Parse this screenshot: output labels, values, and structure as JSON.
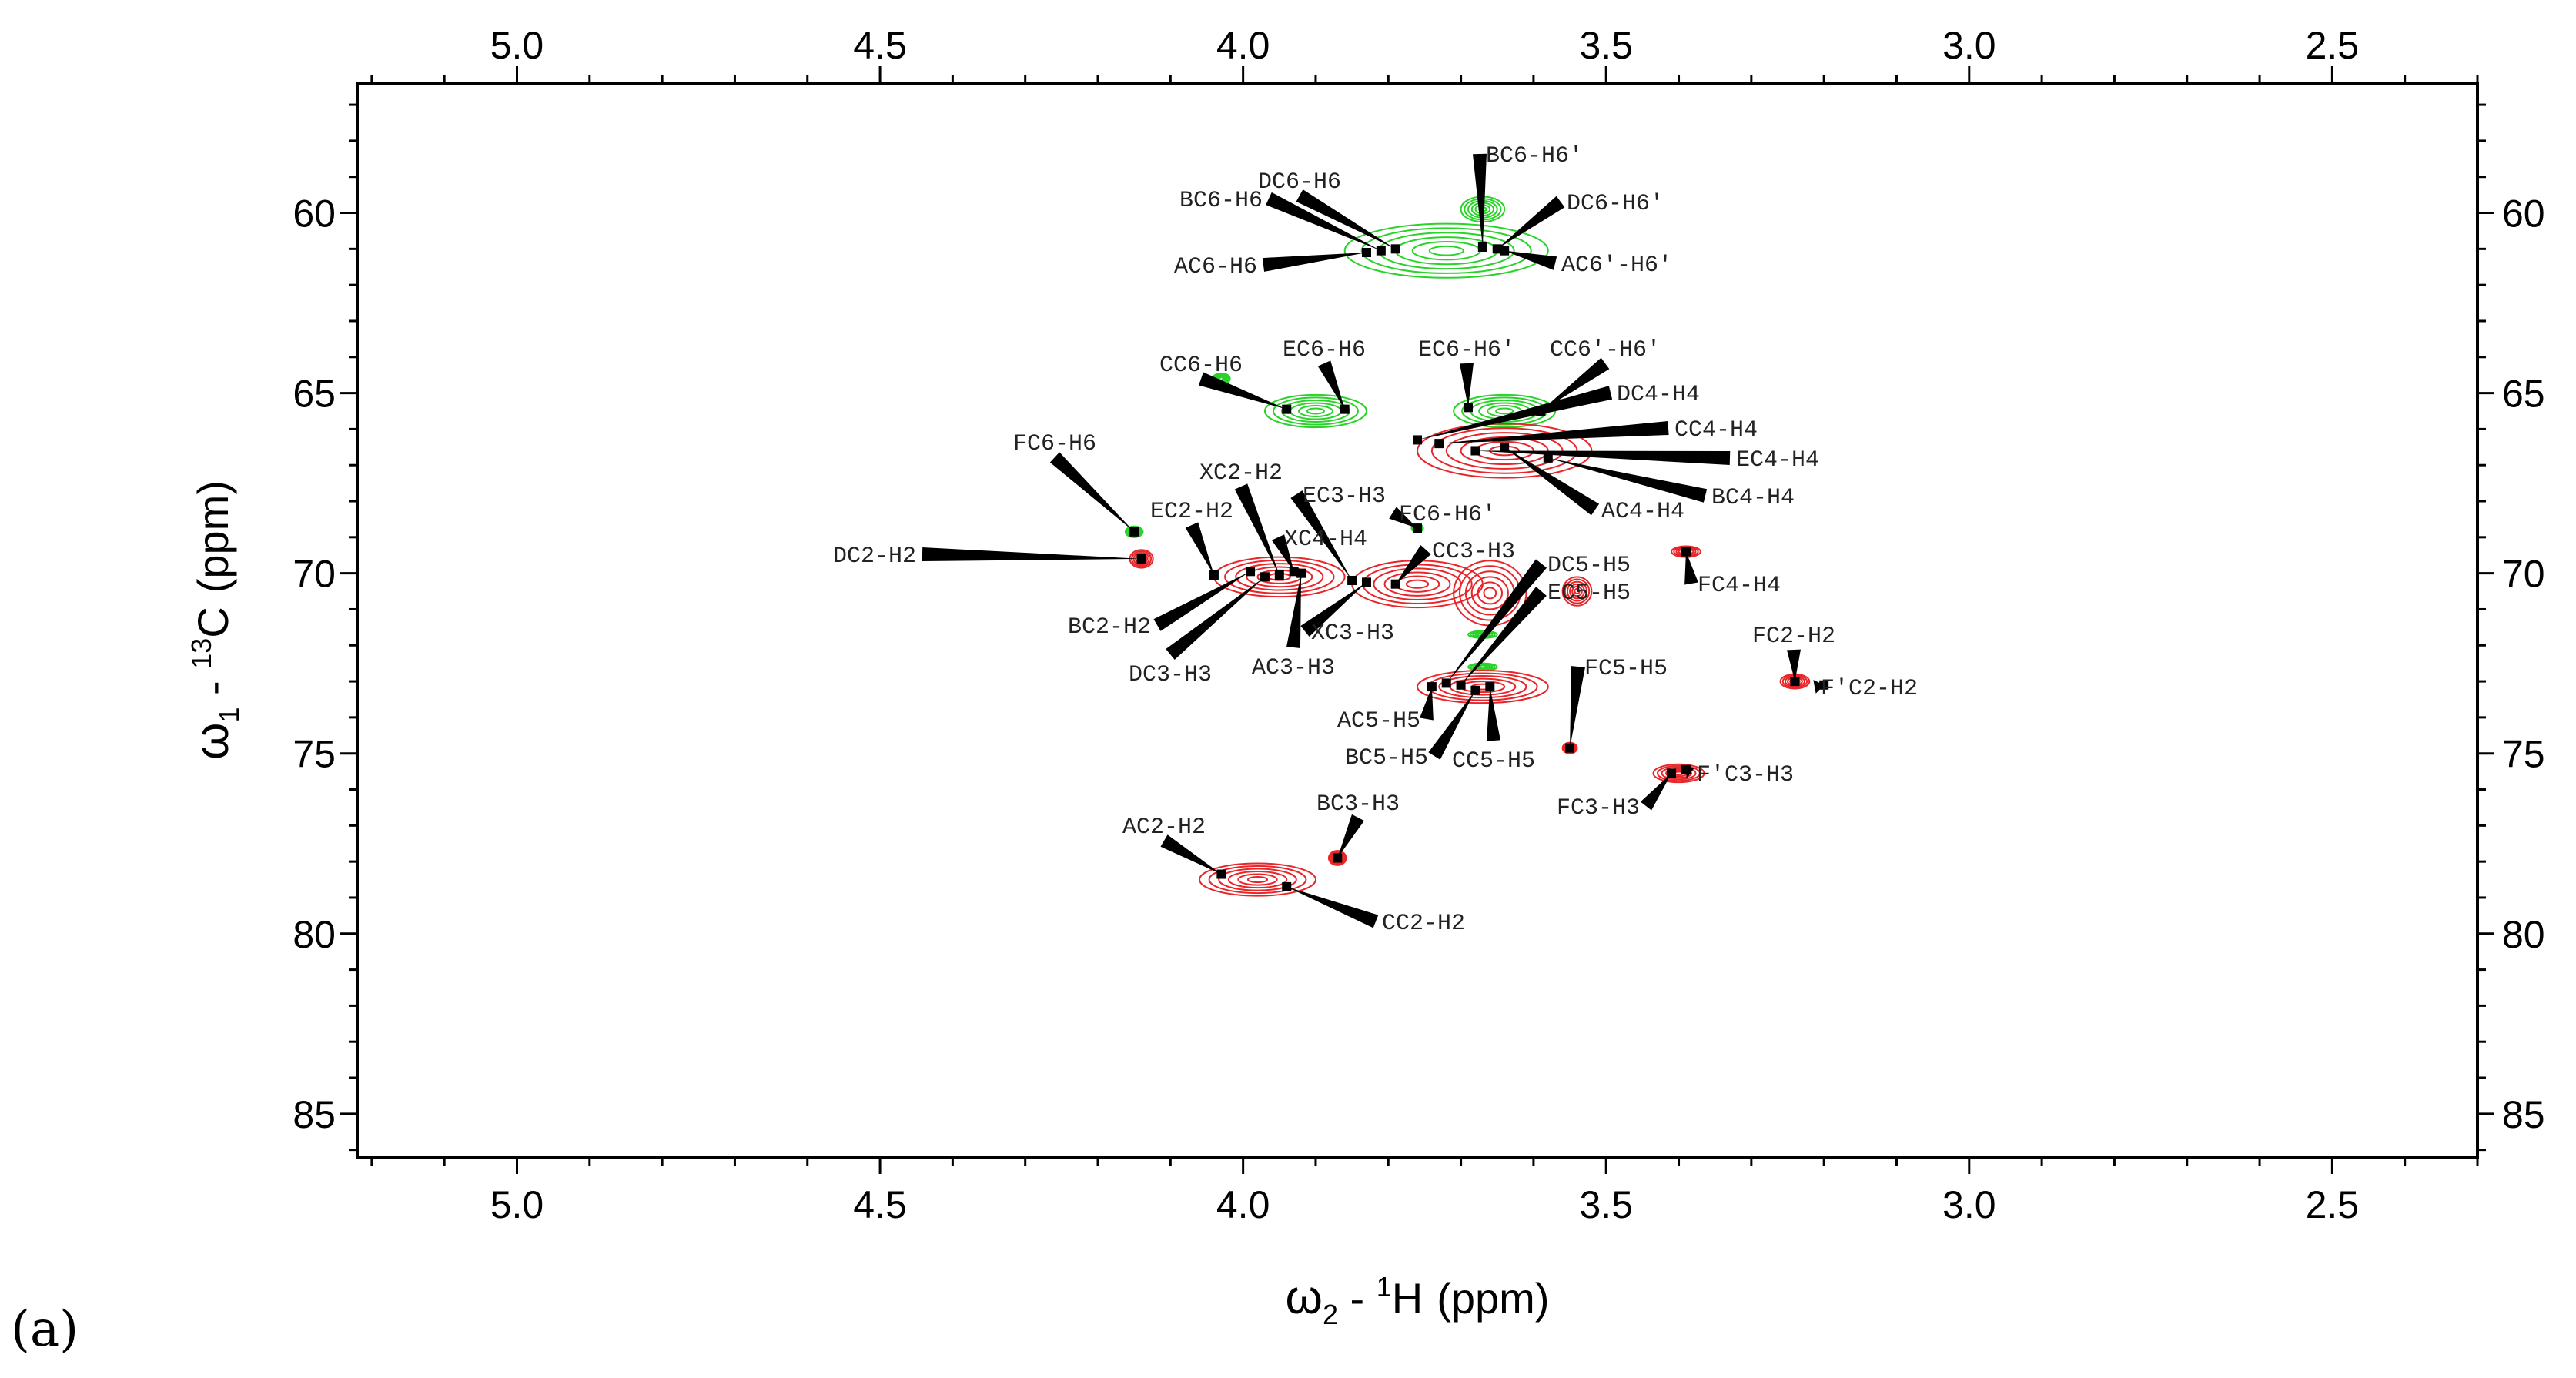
{
  "figure": {
    "panel_label": "(a)"
  },
  "chart_data": {
    "type": "scatter",
    "subtype": "2D NMR HSQC contour spectrum",
    "title": "",
    "xlabel": {
      "greek": "ω",
      "sub": "2",
      "sep": " - ",
      "sup": "1",
      "nucleus": "H",
      "unit": "(ppm)"
    },
    "ylabel": {
      "greek": "ω",
      "sub": "1",
      "sep": " - ",
      "sup": "13",
      "nucleus": "C",
      "unit": "(ppm)"
    },
    "xlim": [
      5.22,
      2.3
    ],
    "ylim": [
      56.4,
      86.2
    ],
    "x_ticks": [
      "5.0",
      "4.5",
      "4.0",
      "3.5",
      "3.0",
      "2.5"
    ],
    "x_tick_values": [
      5.0,
      4.5,
      4.0,
      3.5,
      3.0,
      2.5
    ],
    "y_ticks": [
      "60",
      "65",
      "70",
      "75",
      "80",
      "85"
    ],
    "y_tick_values": [
      60,
      65,
      70,
      75,
      80,
      85
    ],
    "colors": {
      "positive": "#e8262a",
      "negative": "#2ad22a",
      "peak": "#000000",
      "frame": "#000000"
    },
    "peaks": [
      {
        "label": "BC6-H6",
        "x": 3.81,
        "y": 61.05
      },
      {
        "label": "DC6-H6",
        "x": 3.79,
        "y": 61.0
      },
      {
        "label": "AC6-H6",
        "x": 3.83,
        "y": 61.1
      },
      {
        "label": "BC6-H6′",
        "x": 3.67,
        "y": 60.95
      },
      {
        "label": "DC6-H6′",
        "x": 3.65,
        "y": 61.0
      },
      {
        "label": "AC6′-H6′",
        "x": 3.64,
        "y": 61.05
      },
      {
        "label": "CC6-H6",
        "x": 3.94,
        "y": 65.45
      },
      {
        "label": "EC6-H6",
        "x": 3.86,
        "y": 65.45
      },
      {
        "label": "EC6-H6′",
        "x": 3.69,
        "y": 65.4
      },
      {
        "label": "CC6′-H6′",
        "x": 3.59,
        "y": 65.5
      },
      {
        "label": "DC4-H4",
        "x": 3.76,
        "y": 66.3
      },
      {
        "label": "CC4-H4",
        "x": 3.73,
        "y": 66.4
      },
      {
        "label": "EC4-H4",
        "x": 3.68,
        "y": 66.6
      },
      {
        "label": "AC4-H4",
        "x": 3.64,
        "y": 66.5
      },
      {
        "label": "BC4-H4",
        "x": 3.58,
        "y": 66.8
      },
      {
        "label": "FC6-H6",
        "x": 4.15,
        "y": 68.85
      },
      {
        "label": "FC6-H6′",
        "x": 3.76,
        "y": 68.75
      },
      {
        "label": "DC2-H2",
        "x": 4.14,
        "y": 69.6
      },
      {
        "label": "EC2-H2",
        "x": 4.04,
        "y": 70.05
      },
      {
        "label": "BC2-H2",
        "x": 3.99,
        "y": 69.95
      },
      {
        "label": "DC3-H3",
        "x": 3.97,
        "y": 70.1
      },
      {
        "label": "XC2-H2",
        "x": 3.95,
        "y": 70.05
      },
      {
        "label": "XC4-H4",
        "x": 3.93,
        "y": 69.95
      },
      {
        "label": "AC3-H3",
        "x": 3.92,
        "y": 70.0
      },
      {
        "label": "EC3-H3",
        "x": 3.85,
        "y": 70.2
      },
      {
        "label": "XC3-H3",
        "x": 3.83,
        "y": 70.25
      },
      {
        "label": "CC3-H3",
        "x": 3.79,
        "y": 70.3
      },
      {
        "label": "FC4-H4",
        "x": 3.39,
        "y": 69.4
      },
      {
        "label": "DC5-H5",
        "x": 3.72,
        "y": 73.05
      },
      {
        "label": "EC5-H5",
        "x": 3.7,
        "y": 73.1
      },
      {
        "label": "AC5-H5",
        "x": 3.74,
        "y": 73.15
      },
      {
        "label": "BC5-H5",
        "x": 3.68,
        "y": 73.25
      },
      {
        "label": "CC5-H5",
        "x": 3.66,
        "y": 73.15
      },
      {
        "label": "FC5-H5",
        "x": 3.55,
        "y": 74.85
      },
      {
        "label": "FC2-H2",
        "x": 3.24,
        "y": 73.0
      },
      {
        "label": "F′C2-H2",
        "x": 3.2,
        "y": 73.1
      },
      {
        "label": "FC3-H3",
        "x": 3.41,
        "y": 75.55
      },
      {
        "label": "F′C3-H3",
        "x": 3.39,
        "y": 75.45
      },
      {
        "label": "AC2-H2",
        "x": 4.03,
        "y": 78.35
      },
      {
        "label": "BC3-H3",
        "x": 3.87,
        "y": 77.9
      },
      {
        "label": "CC2-H2",
        "x": 3.94,
        "y": 78.7
      }
    ],
    "contour_regions": [
      {
        "sign": "negative",
        "x": 3.72,
        "y": 61.05,
        "rx": 0.14,
        "ry": 0.75
      },
      {
        "sign": "negative",
        "x": 3.67,
        "y": 59.9,
        "rx": 0.03,
        "ry": 0.35
      },
      {
        "sign": "negative",
        "x": 3.9,
        "y": 65.5,
        "rx": 0.07,
        "ry": 0.45
      },
      {
        "sign": "negative",
        "x": 3.64,
        "y": 65.5,
        "rx": 0.07,
        "ry": 0.45
      },
      {
        "sign": "negative",
        "x": 4.03,
        "y": 64.6,
        "rx": 0.012,
        "ry": 0.15
      },
      {
        "sign": "negative",
        "x": 4.15,
        "y": 68.85,
        "rx": 0.012,
        "ry": 0.15
      },
      {
        "sign": "negative",
        "x": 3.76,
        "y": 68.75,
        "rx": 0.008,
        "ry": 0.12
      },
      {
        "sign": "negative",
        "x": 3.67,
        "y": 71.7,
        "rx": 0.02,
        "ry": 0.1
      },
      {
        "sign": "negative",
        "x": 3.67,
        "y": 72.6,
        "rx": 0.02,
        "ry": 0.1
      },
      {
        "sign": "positive",
        "x": 3.64,
        "y": 66.6,
        "rx": 0.12,
        "ry": 0.75
      },
      {
        "sign": "positive",
        "x": 3.95,
        "y": 70.1,
        "rx": 0.09,
        "ry": 0.55
      },
      {
        "sign": "positive",
        "x": 3.76,
        "y": 70.3,
        "rx": 0.09,
        "ry": 0.65
      },
      {
        "sign": "positive",
        "x": 3.66,
        "y": 70.55,
        "rx": 0.05,
        "ry": 0.9
      },
      {
        "sign": "positive",
        "x": 3.67,
        "y": 73.15,
        "rx": 0.09,
        "ry": 0.45
      },
      {
        "sign": "positive",
        "x": 4.14,
        "y": 69.6,
        "rx": 0.016,
        "ry": 0.25
      },
      {
        "sign": "positive",
        "x": 3.39,
        "y": 69.4,
        "rx": 0.02,
        "ry": 0.15
      },
      {
        "sign": "positive",
        "x": 3.54,
        "y": 70.5,
        "rx": 0.02,
        "ry": 0.4
      },
      {
        "sign": "positive",
        "x": 3.55,
        "y": 74.85,
        "rx": 0.01,
        "ry": 0.15
      },
      {
        "sign": "positive",
        "x": 3.24,
        "y": 73.0,
        "rx": 0.02,
        "ry": 0.2
      },
      {
        "sign": "positive",
        "x": 3.4,
        "y": 75.55,
        "rx": 0.035,
        "ry": 0.25
      },
      {
        "sign": "positive",
        "x": 3.98,
        "y": 78.5,
        "rx": 0.08,
        "ry": 0.45
      },
      {
        "sign": "positive",
        "x": 3.87,
        "y": 77.9,
        "rx": 0.012,
        "ry": 0.2
      }
    ]
  }
}
